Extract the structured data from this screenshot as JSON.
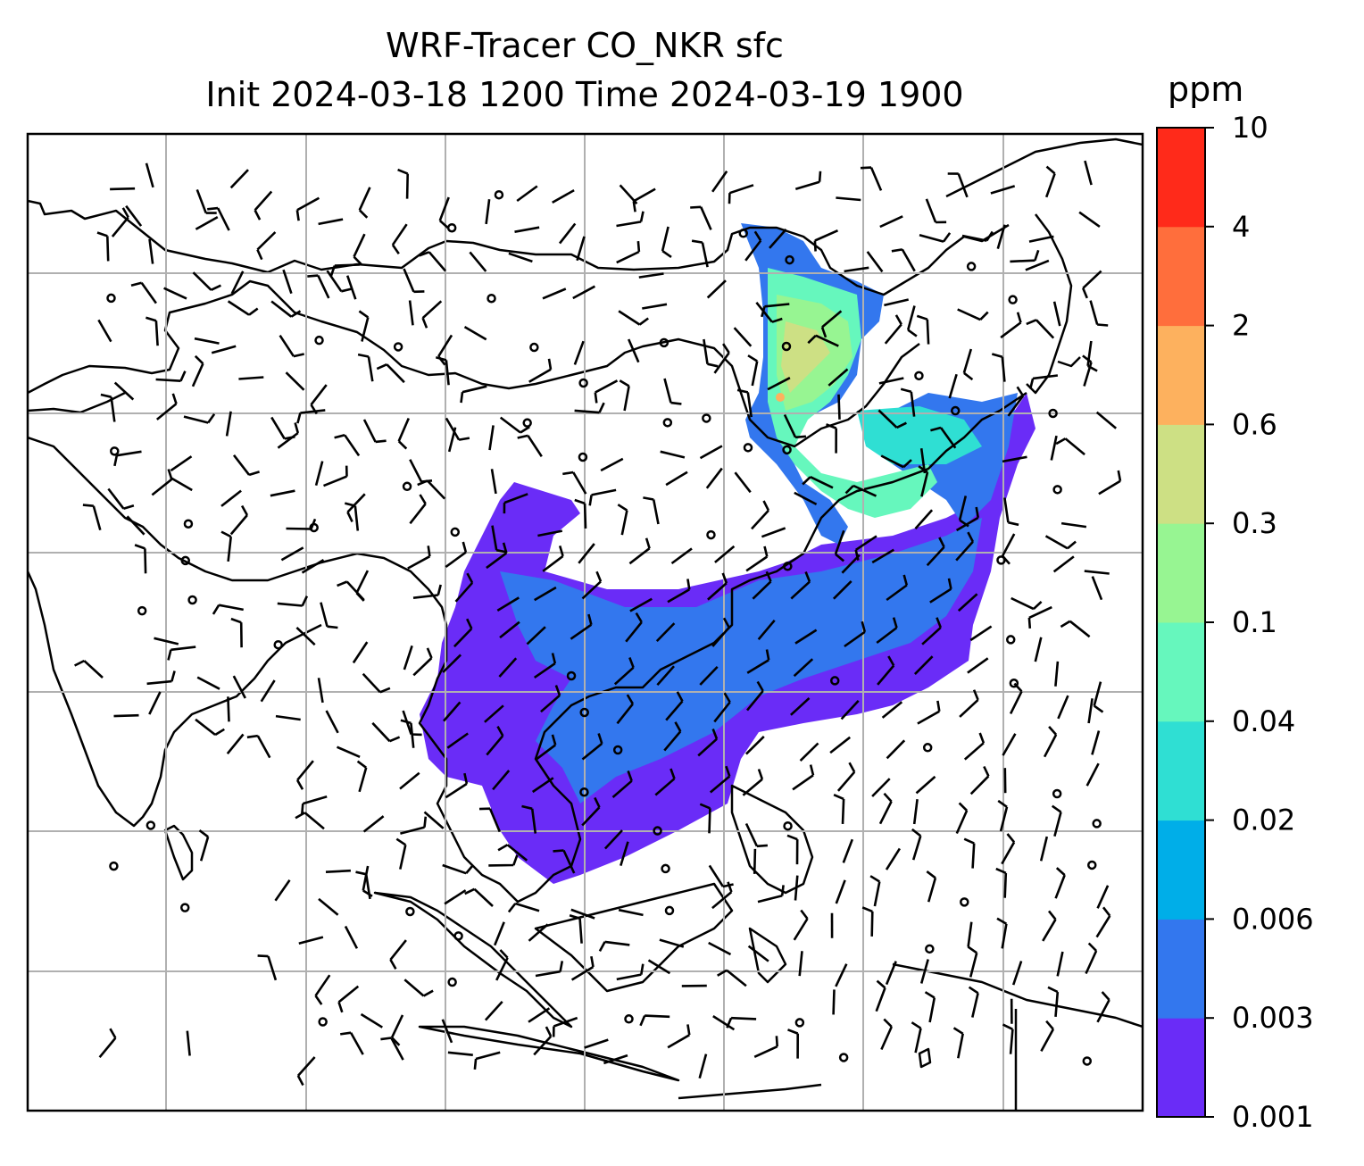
{
  "title_line1": "WRF-Tracer CO_NKR sfc",
  "title_line2": "Init 2024-03-18 1200 Time 2024-03-19 1900",
  "colorbar": {
    "unit": "ppm",
    "tick_labels": [
      "0.001",
      "0.003",
      "0.006",
      "0.02",
      "0.04",
      "0.1",
      "0.3",
      "0.6",
      "2",
      "4",
      "10"
    ],
    "colors": [
      "#6a2cf7",
      "#3377ee",
      "#00aee8",
      "#2fdfd3",
      "#66f7bd",
      "#97f592",
      "#cde084",
      "#fdb15e",
      "#ff6e3c",
      "#ff2a1a"
    ]
  },
  "map": {
    "gridline_color": "#b0b0b0",
    "coastline_color": "#000000",
    "barb_color": "#000000"
  }
}
